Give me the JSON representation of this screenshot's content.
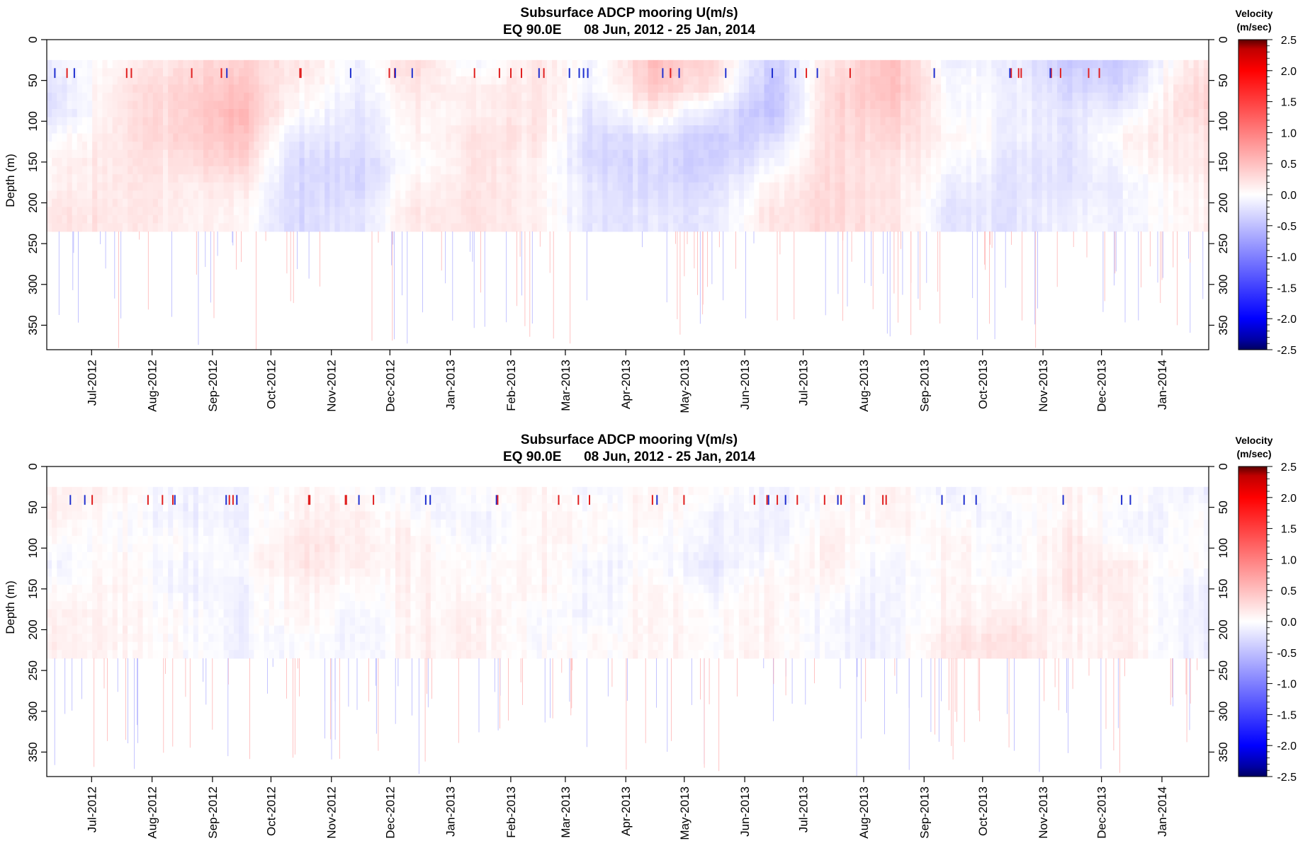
{
  "colorbar": {
    "title_line1": "Velocity",
    "title_line2": "(m/sec)",
    "ticks": [
      "2.5",
      "2.0",
      "1.5",
      "1.0",
      "0.5",
      "0.0",
      "-0.5",
      "-1.0",
      "-1.5",
      "-2.0",
      "-2.5"
    ],
    "range": [
      -2.5,
      2.5
    ],
    "colors": {
      "strong_positive": "#5a0000",
      "positive": "#ff0000",
      "zero": "#ffffff",
      "negative": "#0000ff",
      "strong_negative": "#000060"
    }
  },
  "chart_data": [
    {
      "type": "heatmap",
      "title": "Subsurface ADCP mooring U(m/s)",
      "subtitle": "EQ 90.0E      08 Jun, 2012 - 25 Jan, 2014",
      "ylabel": "Depth (m)",
      "xlabel": "",
      "y_ticks": [
        "0",
        "50",
        "100",
        "150",
        "200",
        "250",
        "300",
        "350"
      ],
      "x_tick_labels": [
        "Jul-2012",
        "Aug-2012",
        "Sep-2012",
        "Oct-2012",
        "Nov-2012",
        "Dec-2012",
        "Jan-2013",
        "Feb-2013",
        "Mar-2013",
        "Apr-2013",
        "May-2013",
        "Jun-2013",
        "Jul-2013",
        "Aug-2013",
        "Sep-2013",
        "Oct-2013",
        "Nov-2013",
        "Dec-2013",
        "Jan-2014"
      ],
      "x_range": [
        "2012-06-08",
        "2014-01-25"
      ],
      "ylim": [
        0,
        380
      ],
      "y_inverted": true,
      "data_depth_range": [
        25,
        235
      ],
      "depth_levels_m": [
        30,
        60,
        90,
        120,
        150,
        180,
        210
      ],
      "dates": [
        "2012-06-15",
        "2012-07-15",
        "2012-08-15",
        "2012-09-15",
        "2012-10-15",
        "2012-11-15",
        "2012-12-15",
        "2013-01-15",
        "2013-02-15",
        "2013-03-15",
        "2013-04-15",
        "2013-05-15",
        "2013-06-15",
        "2013-07-15",
        "2013-08-15",
        "2013-09-15",
        "2013-10-15",
        "2013-11-15",
        "2013-12-15",
        "2014-01-15"
      ],
      "values_m_per_s": [
        [
          -0.1,
          0.1,
          0.2,
          0.4,
          0.2,
          -0.1,
          0.3,
          -0.1,
          0.2,
          -0.1,
          0.5,
          0.3,
          -0.4,
          0.2,
          0.5,
          -0.1,
          -0.1,
          -0.4,
          -0.4,
          0.2
        ],
        [
          -0.2,
          0.2,
          0.3,
          0.5,
          0.1,
          -0.1,
          0.2,
          0.1,
          0.2,
          -0.1,
          0.4,
          0.2,
          -0.5,
          0.3,
          0.5,
          0.0,
          -0.1,
          -0.3,
          -0.3,
          0.3
        ],
        [
          -0.2,
          0.2,
          0.3,
          0.6,
          0.0,
          -0.2,
          0.1,
          0.1,
          0.2,
          -0.2,
          0.1,
          -0.2,
          -0.5,
          0.3,
          0.4,
          0.0,
          -0.1,
          -0.2,
          -0.1,
          0.3
        ],
        [
          0.0,
          0.2,
          0.3,
          0.5,
          -0.2,
          -0.2,
          0.1,
          0.2,
          0.2,
          -0.3,
          -0.2,
          -0.4,
          -0.3,
          0.3,
          0.3,
          0.1,
          -0.1,
          -0.2,
          0.1,
          0.2
        ],
        [
          0.1,
          0.2,
          0.2,
          0.4,
          -0.3,
          -0.3,
          0.0,
          0.2,
          0.1,
          -0.3,
          -0.3,
          -0.4,
          -0.1,
          0.3,
          0.2,
          0.0,
          -0.2,
          -0.2,
          0.0,
          0.2
        ],
        [
          0.1,
          0.2,
          0.1,
          0.2,
          -0.3,
          -0.3,
          0.1,
          0.2,
          0.1,
          -0.2,
          -0.3,
          -0.3,
          0.1,
          0.3,
          0.2,
          -0.1,
          -0.2,
          -0.2,
          -0.1,
          0.1
        ],
        [
          0.2,
          0.2,
          0.1,
          0.1,
          -0.3,
          -0.2,
          0.2,
          0.2,
          0.1,
          -0.2,
          -0.2,
          -0.2,
          0.2,
          0.3,
          0.2,
          -0.2,
          -0.2,
          -0.1,
          -0.1,
          0.1
        ]
      ]
    },
    {
      "type": "heatmap",
      "title": "Subsurface ADCP mooring V(m/s)",
      "subtitle": "EQ 90.0E      08 Jun, 2012 - 25 Jan, 2014",
      "ylabel": "Depth (m)",
      "xlabel": "",
      "y_ticks": [
        "0",
        "50",
        "100",
        "150",
        "200",
        "250",
        "300",
        "350"
      ],
      "x_tick_labels": [
        "Jul-2012",
        "Aug-2012",
        "Sep-2012",
        "Oct-2012",
        "Nov-2012",
        "Dec-2012",
        "Jan-2013",
        "Feb-2013",
        "Mar-2013",
        "Apr-2013",
        "May-2013",
        "Jun-2013",
        "Jul-2013",
        "Aug-2013",
        "Sep-2013",
        "Oct-2013",
        "Nov-2013",
        "Dec-2013",
        "Jan-2014"
      ],
      "x_range": [
        "2012-06-08",
        "2014-01-25"
      ],
      "ylim": [
        0,
        380
      ],
      "y_inverted": true,
      "data_depth_range": [
        25,
        235
      ],
      "depth_levels_m": [
        30,
        60,
        90,
        120,
        150,
        180,
        210
      ],
      "dates": [
        "2012-06-15",
        "2012-07-15",
        "2012-08-15",
        "2012-09-15",
        "2012-10-15",
        "2012-11-15",
        "2012-12-15",
        "2013-01-15",
        "2013-02-15",
        "2013-03-15",
        "2013-04-15",
        "2013-05-15",
        "2013-06-15",
        "2013-07-15",
        "2013-08-15",
        "2013-09-15",
        "2013-10-15",
        "2013-11-15",
        "2013-12-15",
        "2014-01-15"
      ],
      "values_m_per_s": [
        [
          0.1,
          0.1,
          -0.1,
          -0.1,
          0.1,
          0.0,
          -0.1,
          0.0,
          0.1,
          -0.1,
          0.1,
          0.0,
          -0.1,
          0.0,
          0.1,
          -0.1,
          0.0,
          0.1,
          0.0,
          -0.1
        ],
        [
          0.1,
          0.0,
          -0.1,
          -0.1,
          0.1,
          0.1,
          0.0,
          -0.1,
          0.1,
          0.0,
          0.1,
          -0.1,
          -0.1,
          0.0,
          0.1,
          0.0,
          -0.1,
          0.1,
          -0.1,
          0.0
        ],
        [
          0.0,
          0.0,
          0.0,
          -0.1,
          0.2,
          0.1,
          0.1,
          -0.1,
          0.1,
          0.0,
          0.0,
          -0.1,
          -0.1,
          0.1,
          0.0,
          0.1,
          -0.1,
          0.2,
          -0.1,
          0.0
        ],
        [
          -0.1,
          0.1,
          -0.1,
          0.0,
          0.2,
          0.1,
          0.1,
          0.0,
          0.1,
          -0.1,
          0.0,
          -0.2,
          0.0,
          0.1,
          -0.1,
          0.1,
          -0.1,
          0.2,
          0.1,
          0.0
        ],
        [
          0.0,
          0.1,
          -0.1,
          -0.1,
          0.1,
          0.0,
          0.1,
          0.0,
          0.1,
          -0.1,
          0.1,
          -0.1,
          0.1,
          0.0,
          -0.1,
          0.1,
          0.0,
          0.2,
          0.1,
          -0.1
        ],
        [
          0.1,
          0.1,
          0.0,
          -0.1,
          0.1,
          -0.1,
          0.1,
          0.1,
          0.0,
          -0.1,
          0.1,
          0.0,
          0.1,
          -0.1,
          -0.1,
          0.1,
          0.1,
          0.1,
          0.1,
          -0.1
        ],
        [
          0.1,
          0.1,
          0.0,
          -0.1,
          0.0,
          -0.1,
          0.1,
          0.1,
          0.0,
          0.0,
          0.1,
          0.0,
          0.1,
          -0.1,
          -0.1,
          0.2,
          0.2,
          0.1,
          0.1,
          -0.1
        ]
      ]
    }
  ]
}
